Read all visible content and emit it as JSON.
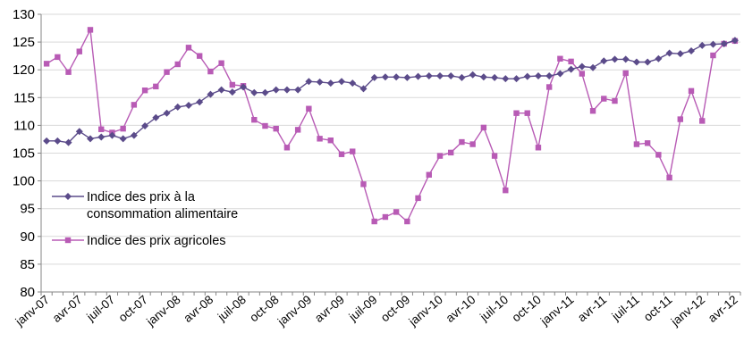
{
  "colors": {
    "food_cpi": "#5b4b8a",
    "agri": "#b85bb5",
    "axis": "#868686",
    "grid": "#d9d9d9"
  },
  "chart_data": {
    "type": "line",
    "title": "",
    "xlabel": "",
    "ylabel": "",
    "ylim": [
      80,
      130
    ],
    "yticks": [
      80,
      85,
      90,
      95,
      100,
      105,
      110,
      115,
      120,
      125,
      130
    ],
    "grid": "horizontal",
    "legend_position": "left",
    "x_tick_labels": [
      "janv-07",
      "avr-07",
      "juil-07",
      "oct-07",
      "janv-08",
      "avr-08",
      "juil-08",
      "oct-08",
      "janv-09",
      "avr-09",
      "juil-09",
      "oct-09",
      "janv-10",
      "avr-10",
      "juil-10",
      "oct-10",
      "janv-11",
      "avr-11",
      "juil-11",
      "oct-11",
      "janv-12",
      "avr-12"
    ],
    "series": [
      {
        "name": "Indice des prix à la consommation alimentaire",
        "marker": "diamond",
        "values": [
          107.2,
          107.2,
          106.9,
          108.9,
          107.6,
          107.9,
          108.2,
          107.6,
          108.2,
          109.9,
          111.4,
          112.2,
          113.3,
          113.6,
          114.2,
          115.6,
          116.4,
          116.0,
          116.9,
          115.9,
          115.9,
          116.4,
          116.4,
          116.4,
          117.9,
          117.8,
          117.6,
          117.9,
          117.6,
          116.6,
          118.6,
          118.7,
          118.7,
          118.6,
          118.8,
          118.9,
          118.9,
          118.9,
          118.6,
          119.1,
          118.7,
          118.6,
          118.4,
          118.4,
          118.8,
          118.9,
          118.9,
          119.3,
          120.1,
          120.6,
          120.4,
          121.6,
          121.9,
          121.9,
          121.4,
          121.4,
          122.0,
          123.0,
          122.9,
          123.4,
          124.4,
          124.6,
          124.7,
          125.3
        ]
      },
      {
        "name": "Indice des prix agricoles",
        "marker": "square",
        "values": [
          121.1,
          122.3,
          119.6,
          123.3,
          127.2,
          109.3,
          108.7,
          109.4,
          113.7,
          116.3,
          117.0,
          119.6,
          121.0,
          124.0,
          122.5,
          119.7,
          121.2,
          117.3,
          117.1,
          111.0,
          109.9,
          109.4,
          106.0,
          109.2,
          113.0,
          107.6,
          107.3,
          104.8,
          105.3,
          99.4,
          92.7,
          93.5,
          94.4,
          92.7,
          96.9,
          101.1,
          104.5,
          105.1,
          107.0,
          106.6,
          109.6,
          104.5,
          98.3,
          112.2,
          112.2,
          106.0,
          116.9,
          122.0,
          121.5,
          119.3,
          112.6,
          114.8,
          114.4,
          119.4,
          106.6,
          106.8,
          104.7,
          100.6,
          111.1,
          116.2,
          110.8,
          122.6,
          124.7,
          125.2
        ]
      }
    ]
  }
}
